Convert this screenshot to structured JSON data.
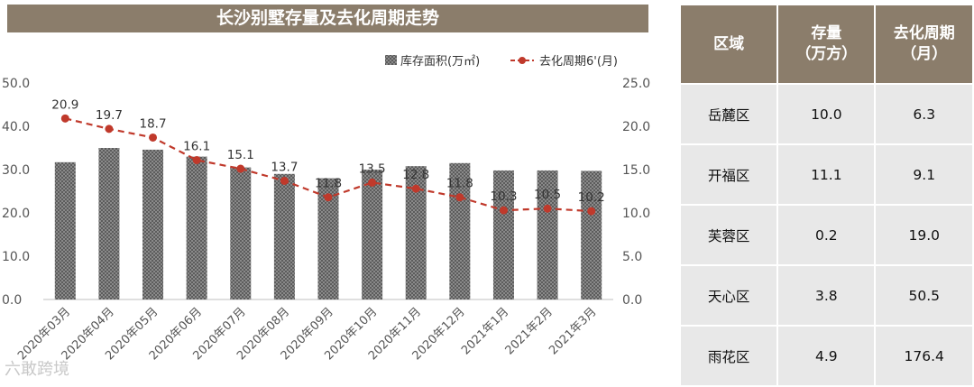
{
  "chart_title": "长沙别墅存量及去化周期走势",
  "chart_data": {
    "type": "bar",
    "categories": [
      "2020年03月",
      "2020年04月",
      "2020年05月",
      "2020年06月",
      "2020年07月",
      "2020年08月",
      "2020年09月",
      "2020年10月",
      "2020年11月",
      "2020年12月",
      "2021年1月",
      "2021年2月",
      "2021年3月"
    ],
    "series": [
      {
        "name": "库存面积(万㎡)",
        "type": "bar",
        "axis": "left",
        "color": "#777777",
        "values": [
          31.7,
          35.0,
          34.6,
          33.0,
          30.5,
          29.0,
          28.0,
          30.0,
          30.8,
          31.5,
          29.8,
          29.8,
          29.7
        ]
      },
      {
        "name": "去化周期6'(月)",
        "type": "line",
        "axis": "right",
        "color": "#c0392b",
        "values": [
          20.9,
          19.7,
          18.7,
          16.1,
          15.1,
          13.7,
          11.8,
          13.5,
          12.8,
          11.8,
          10.3,
          10.5,
          10.2
        ],
        "labels": [
          "20.9",
          "19.7",
          "18.7",
          "16.1",
          "15.1",
          "13.7",
          "11.8",
          "13.5",
          "12.8",
          "11.8",
          "10.3",
          "10.5",
          "10.2"
        ]
      }
    ],
    "y_left": {
      "ylim": [
        0,
        50
      ],
      "ticks": [
        "0.0",
        "10.0",
        "20.0",
        "30.0",
        "40.0",
        "50.0"
      ]
    },
    "y_right": {
      "ylim": [
        0,
        25
      ],
      "ticks": [
        "0.0",
        "5.0",
        "10.0",
        "15.0",
        "20.0",
        "25.0"
      ]
    },
    "legend_position": "top-right",
    "grid": false
  },
  "table": {
    "headers": [
      "区域",
      "存量\n（万方）",
      "去化周期\n（月）"
    ],
    "rows": [
      [
        "岳麓区",
        "10.0",
        "6.3"
      ],
      [
        "开福区",
        "11.1",
        "9.1"
      ],
      [
        "芙蓉区",
        "0.2",
        "19.0"
      ],
      [
        "天心区",
        "3.8",
        "50.5"
      ],
      [
        "雨花区",
        "4.9",
        "176.4"
      ]
    ]
  },
  "colors": {
    "header_bg": "#8b7d6b",
    "bar": "#777777",
    "line": "#c0392b",
    "cell_bg": "#e8e8e8"
  },
  "watermark": "六敢跨境"
}
